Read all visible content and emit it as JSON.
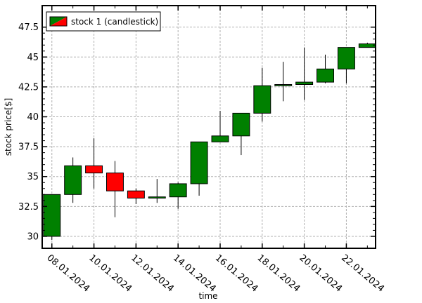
{
  "chart_data": {
    "type": "candlestick",
    "xlabel": "time",
    "ylabel": "stock price[$]",
    "legend": {
      "entries": [
        "stock 1 (candlestick)"
      ],
      "placement": "top-left"
    },
    "grid": true,
    "ylim": [
      29.0,
      49.3
    ],
    "y_ticks": [
      30,
      32.5,
      35,
      37.5,
      40,
      42.5,
      45,
      47.5
    ],
    "y_tick_labels": [
      "30",
      "32.5",
      "35",
      "37.5",
      "40",
      "42.5",
      "45",
      "47.5"
    ],
    "x_tick_labels": [
      "08.01.2024",
      "10.01.2024",
      "12.01.2024",
      "14.01.2024",
      "16.01.2024",
      "18.01.2024",
      "20.01.2024",
      "22.01.2024"
    ],
    "up_color": "#008000",
    "down_color": "#ff0000",
    "candles": [
      {
        "date": "08.01.2024",
        "open": 30.0,
        "high": 33.5,
        "low": 29.7,
        "close": 33.5
      },
      {
        "date": "09.01.2024",
        "open": 33.5,
        "high": 36.6,
        "low": 32.8,
        "close": 35.9
      },
      {
        "date": "10.01.2024",
        "open": 35.9,
        "high": 38.2,
        "low": 34.0,
        "close": 35.3
      },
      {
        "date": "11.01.2024",
        "open": 35.3,
        "high": 36.3,
        "low": 31.6,
        "close": 33.8
      },
      {
        "date": "12.01.2024",
        "open": 33.8,
        "high": 34.0,
        "low": 32.7,
        "close": 33.2
      },
      {
        "date": "13.01.2024",
        "open": 33.2,
        "high": 34.8,
        "low": 32.8,
        "close": 33.3
      },
      {
        "date": "14.01.2024",
        "open": 33.3,
        "high": 34.5,
        "low": 32.3,
        "close": 34.4
      },
      {
        "date": "15.01.2024",
        "open": 34.4,
        "high": 37.9,
        "low": 33.4,
        "close": 37.9
      },
      {
        "date": "16.01.2024",
        "open": 37.9,
        "high": 40.5,
        "low": 37.9,
        "close": 38.4
      },
      {
        "date": "17.01.2024",
        "open": 38.4,
        "high": 40.3,
        "low": 36.8,
        "close": 40.3
      },
      {
        "date": "18.01.2024",
        "open": 40.3,
        "high": 44.1,
        "low": 39.6,
        "close": 42.6
      },
      {
        "date": "19.01.2024",
        "open": 42.6,
        "high": 44.6,
        "low": 41.3,
        "close": 42.7
      },
      {
        "date": "20.01.2024",
        "open": 42.7,
        "high": 45.8,
        "low": 41.4,
        "close": 42.9
      },
      {
        "date": "21.01.2024",
        "open": 42.9,
        "high": 45.2,
        "low": 42.8,
        "close": 44.0
      },
      {
        "date": "22.01.2024",
        "open": 44.0,
        "high": 45.8,
        "low": 42.8,
        "close": 45.8
      },
      {
        "date": "23.01.2024",
        "open": 45.8,
        "high": 46.2,
        "low": 45.8,
        "close": 46.1
      }
    ]
  }
}
